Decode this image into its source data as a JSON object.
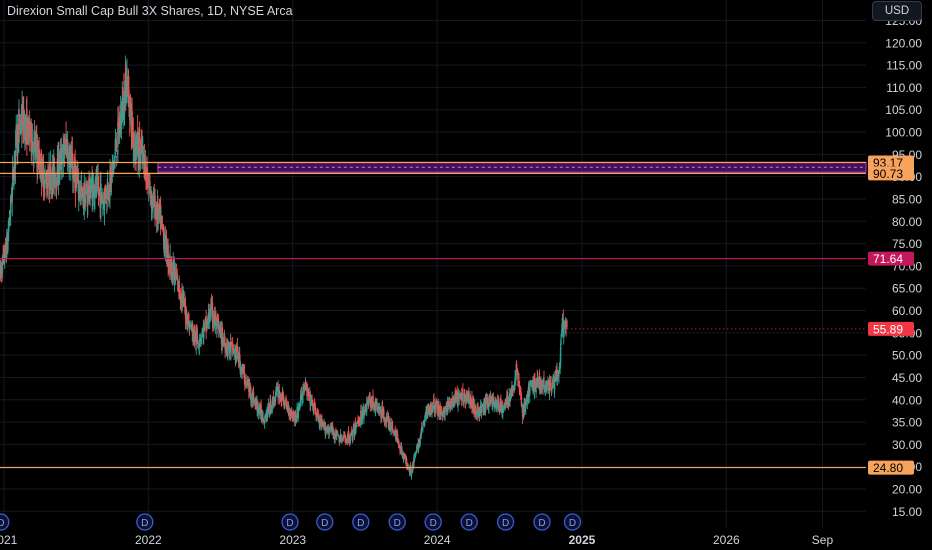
{
  "chart_title": "Direxion Small Cap Bull 3X Shares, 1D, NYSE Arca",
  "currency_button": "USD",
  "colors": {
    "background": "#000000",
    "grid": "#151821",
    "axis_text": "#d1d4dc",
    "up": "#26a69a",
    "down": "#ef5350",
    "orange_line": "#f7a35c",
    "magenta_line": "#c2185b",
    "zone_fill": "#6a1b9a",
    "price_label": "#f23645"
  },
  "chart_data": {
    "type": "candlestick",
    "title": "Direxion Small Cap Bull 3X Shares, 1D, NYSE Arca",
    "x_tick_labels": [
      "2021",
      "2022",
      "2023",
      "2024",
      "2025",
      "2026",
      "Sep"
    ],
    "y_tick_labels": [
      "15.00",
      "20.00",
      "25.00",
      "30.00",
      "35.00",
      "40.00",
      "45.00",
      "50.00",
      "55.00",
      "60.00",
      "65.00",
      "70.00",
      "75.00",
      "80.00",
      "85.00",
      "90.00",
      "95.00",
      "100.00",
      "105.00",
      "110.00",
      "115.00",
      "120.00",
      "125.00"
    ],
    "ylim": [
      13.5,
      126
    ],
    "xlim": [
      "2020-12-22",
      "2026-12-20"
    ],
    "grid": true,
    "levels": [
      {
        "value": 93.17,
        "label": "93.17",
        "color": "#f7a35c"
      },
      {
        "value": 90.73,
        "label": "90.73",
        "color": "#f7a35c"
      },
      {
        "value": 71.64,
        "label": "71.64",
        "color": "#c2185b"
      },
      {
        "value": 24.8,
        "label": "24.80",
        "color": "#f7a35c"
      }
    ],
    "zone": {
      "from": "2022-01-25",
      "low": 91.0,
      "high": 93.2
    },
    "last_price": {
      "value": 55.89,
      "label": "55.89"
    },
    "price_path": [
      [
        "2020-12-22",
        68
      ],
      [
        "2021-01-10",
        75
      ],
      [
        "2021-02-01",
        98
      ],
      [
        "2021-02-15",
        103
      ],
      [
        "2021-03-15",
        98
      ],
      [
        "2021-04-15",
        89
      ],
      [
        "2021-05-15",
        91
      ],
      [
        "2021-06-08",
        97
      ],
      [
        "2021-06-30",
        90
      ],
      [
        "2021-07-20",
        85
      ],
      [
        "2021-08-15",
        88
      ],
      [
        "2021-09-10",
        85
      ],
      [
        "2021-10-01",
        90
      ],
      [
        "2021-11-08",
        112
      ],
      [
        "2021-11-25",
        98
      ],
      [
        "2021-12-20",
        94
      ],
      [
        "2022-01-10",
        85
      ],
      [
        "2022-02-01",
        80
      ],
      [
        "2022-02-20",
        72
      ],
      [
        "2022-03-20",
        65
      ],
      [
        "2022-04-15",
        57
      ],
      [
        "2022-05-05",
        53
      ],
      [
        "2022-05-30",
        57
      ],
      [
        "2022-06-08",
        60
      ],
      [
        "2022-06-30",
        55
      ],
      [
        "2022-07-20",
        52
      ],
      [
        "2022-08-15",
        50
      ],
      [
        "2022-09-05",
        44
      ],
      [
        "2022-09-30",
        39
      ],
      [
        "2022-10-20",
        36
      ],
      [
        "2022-11-10",
        39
      ],
      [
        "2022-11-25",
        42
      ],
      [
        "2022-12-20",
        38
      ],
      [
        "2023-01-10",
        36
      ],
      [
        "2023-01-30",
        43
      ],
      [
        "2023-02-15",
        40
      ],
      [
        "2023-03-15",
        34
      ],
      [
        "2023-04-10",
        33
      ],
      [
        "2023-05-05",
        31
      ],
      [
        "2023-06-01",
        32
      ],
      [
        "2023-06-15",
        35
      ],
      [
        "2023-07-15",
        40
      ],
      [
        "2023-08-15",
        37
      ],
      [
        "2023-09-15",
        33
      ],
      [
        "2023-10-10",
        27
      ],
      [
        "2023-10-28",
        24
      ],
      [
        "2023-11-15",
        30
      ],
      [
        "2023-12-05",
        37
      ],
      [
        "2023-12-20",
        39
      ],
      [
        "2024-01-15",
        37
      ],
      [
        "2024-02-15",
        40
      ],
      [
        "2024-03-15",
        41
      ],
      [
        "2024-04-15",
        37
      ],
      [
        "2024-05-15",
        40
      ],
      [
        "2024-06-15",
        38
      ],
      [
        "2024-07-12",
        42
      ],
      [
        "2024-07-20",
        48
      ],
      [
        "2024-08-05",
        37
      ],
      [
        "2024-08-25",
        43
      ],
      [
        "2024-09-15",
        44
      ],
      [
        "2024-10-15",
        43
      ],
      [
        "2024-11-05",
        46
      ],
      [
        "2024-11-12",
        56
      ],
      [
        "2024-11-25",
        55.89
      ]
    ],
    "event_markers": {
      "label": "D",
      "dates": [
        "2020-12-24",
        "2021-12-23",
        "2022-12-25",
        "2023-03-23",
        "2023-06-22",
        "2023-09-22",
        "2023-12-22",
        "2024-03-22",
        "2024-06-22",
        "2024-09-22",
        "2024-12-08"
      ]
    }
  }
}
